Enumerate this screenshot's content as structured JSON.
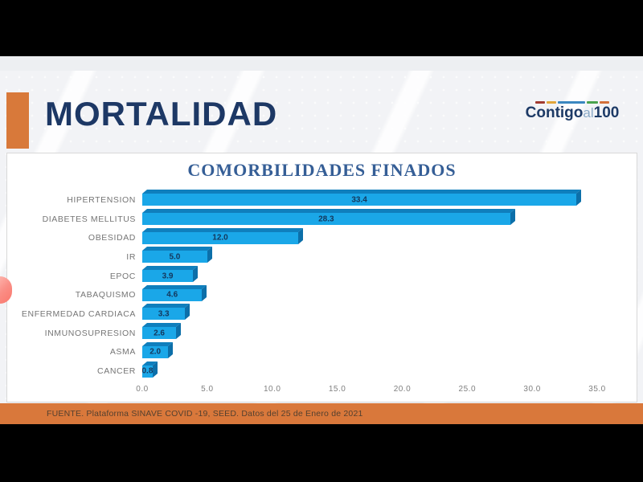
{
  "header": {
    "title": "MORTALIDAD",
    "accent_color": "#D8793A"
  },
  "logo": {
    "text_main": "Contigo",
    "text_mid": "al",
    "text_num": "100",
    "bar_segments": [
      {
        "color": "#a13a30",
        "width": 12
      },
      {
        "color": "#e2a63a",
        "width": 12
      },
      {
        "color": "#3a87c0",
        "width": 34
      },
      {
        "color": "#4aa34e",
        "width": 14
      },
      {
        "color": "#d3703a",
        "width": 12
      }
    ]
  },
  "chart_data": {
    "type": "bar",
    "orientation": "horizontal",
    "title": "COMORBILIDADES FINADOS",
    "categories": [
      "HIPERTENSION",
      "DIABETES MELLITUS",
      "OBESIDAD",
      "IR",
      "EPOC",
      "TABAQUISMO",
      "ENFERMEDAD CARDIACA",
      "INMUNOSUPRESION",
      "ASMA",
      "CANCER"
    ],
    "values": [
      33.4,
      28.3,
      12.0,
      5.0,
      3.9,
      4.6,
      3.3,
      2.6,
      2.0,
      0.8
    ],
    "value_labels": [
      "33.4",
      "28.3",
      "12.0",
      "5.0",
      "3.9",
      "4.6",
      "3.3",
      "2.6",
      "2.0",
      "0.8"
    ],
    "x_ticks": [
      "0.0",
      "5.0",
      "10.0",
      "15.0",
      "20.0",
      "25.0",
      "30.0",
      "35.0"
    ],
    "xlim": [
      0,
      35
    ],
    "grid": false,
    "legend": "none",
    "bar_color": "#1AA7E8",
    "bar_top_color": "#0F7FBD",
    "bar_side_color": "#0C6FA9",
    "value_label_color": "#14375C",
    "category_label_color": "#757575"
  },
  "footer": {
    "source_text": "FUENTE. Plataforma SINAVE COVID -19, SEED. Datos del 25 de Enero de 2021",
    "bg_color": "#D9783B"
  }
}
